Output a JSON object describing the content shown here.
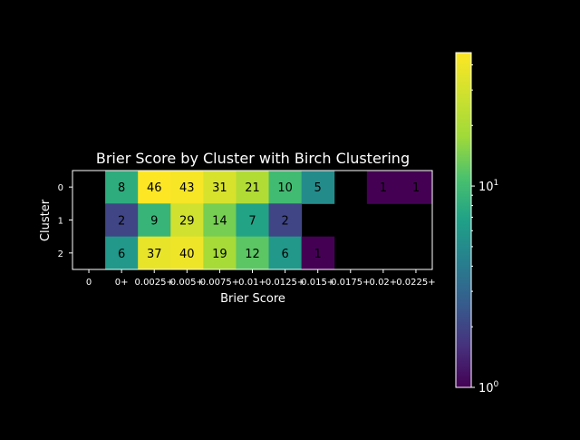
{
  "chart_data": {
    "type": "heatmap",
    "title": "Brier Score by Cluster with Birch Clustering",
    "xlabel": "Brier Score",
    "ylabel": "Cluster",
    "x_categories": [
      "0",
      "0+",
      "0.0025+",
      "0.005+",
      "0.0075+",
      "0.01+",
      "0.0125+",
      "0.015+",
      "0.0175+",
      "0.02+",
      "0.0225+"
    ],
    "y_categories": [
      "0",
      "1",
      "2"
    ],
    "values": [
      [
        null,
        8,
        46,
        43,
        31,
        21,
        10,
        5,
        null,
        1,
        1
      ],
      [
        null,
        2,
        9,
        29,
        14,
        7,
        2,
        null,
        null,
        null,
        null
      ],
      [
        null,
        6,
        37,
        40,
        19,
        12,
        6,
        1,
        null,
        null,
        null
      ]
    ],
    "colormap": "viridis",
    "color_scale": "log",
    "color_range": [
      1,
      46
    ],
    "colorbar_ticks": [
      "10^0",
      "10^1"
    ],
    "background": "#000000",
    "foreground": "#ffffff"
  }
}
